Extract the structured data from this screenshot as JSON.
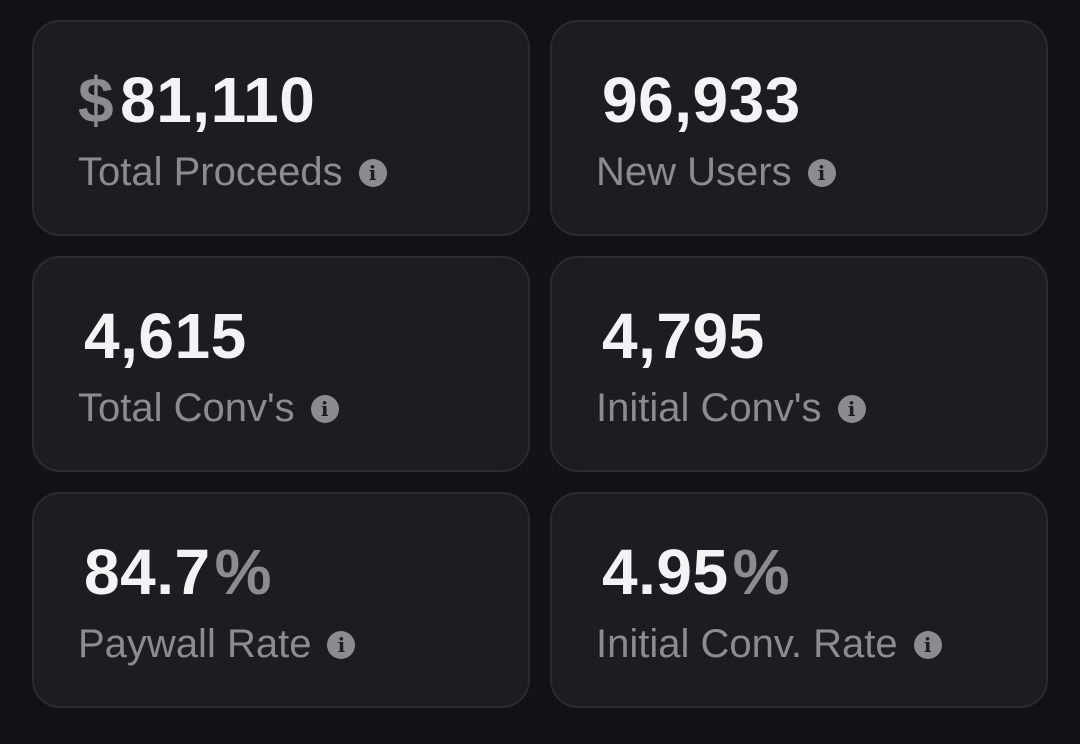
{
  "metrics": [
    {
      "prefix": "$",
      "value": "81,110",
      "suffix": "",
      "label": "Total Proceeds",
      "icon": "info-icon"
    },
    {
      "prefix": "",
      "value": "96,933",
      "suffix": "",
      "label": "New Users",
      "icon": "info-icon"
    },
    {
      "prefix": "",
      "value": "4,615",
      "suffix": "",
      "label": "Total Conv's",
      "icon": "info-icon"
    },
    {
      "prefix": "",
      "value": "4,795",
      "suffix": "",
      "label": "Initial Conv's",
      "icon": "info-icon"
    },
    {
      "prefix": "",
      "value": "84.7",
      "suffix": "%",
      "label": "Paywall Rate",
      "icon": "info-icon"
    },
    {
      "prefix": "",
      "value": "4.95",
      "suffix": "%",
      "label": "Initial Conv. Rate",
      "icon": "info-icon"
    }
  ],
  "colors": {
    "background": "#131317",
    "card": "#1d1d21",
    "card_border": "#2b2b30",
    "value_text": "#f3f3f5",
    "muted_text": "#8b8b91"
  }
}
